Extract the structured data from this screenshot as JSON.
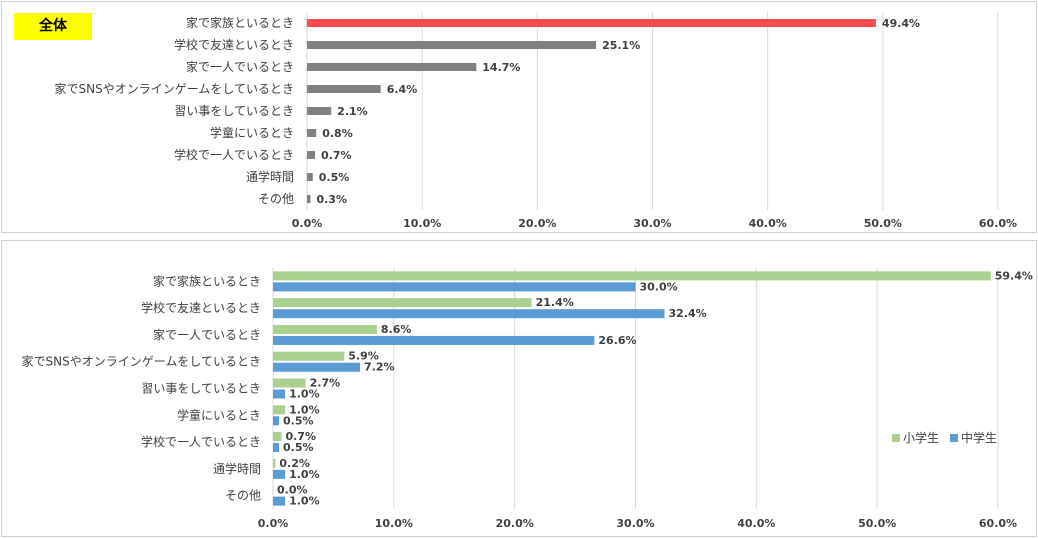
{
  "colors": {
    "highlight_bar": "#f54d4d",
    "gray_bar": "#808080",
    "elementary": "#a9d18e",
    "middle": "#5b9bd5",
    "badge": "#ffff00",
    "grid": "#d9d9d9"
  },
  "chart_data": [
    {
      "type": "bar",
      "orientation": "horizontal",
      "badge": "全体",
      "categories": [
        "家で家族といるとき",
        "学校で友達といるとき",
        "家で一人でいるとき",
        "家でSNSやオンラインゲームをしているとき",
        "習い事をしているとき",
        "学童にいるとき",
        "学校で一人でいるとき",
        "通学時間",
        "その他"
      ],
      "values": [
        49.4,
        25.1,
        14.7,
        6.4,
        2.1,
        0.8,
        0.7,
        0.5,
        0.3
      ],
      "value_labels": [
        "49.4%",
        "25.1%",
        "14.7%",
        "6.4%",
        "2.1%",
        "0.8%",
        "0.7%",
        "0.5%",
        "0.3%"
      ],
      "xlim": [
        0,
        60
      ],
      "ticks": [
        "0.0%",
        "10.0%",
        "20.0%",
        "30.0%",
        "40.0%",
        "50.0%",
        "60.0%"
      ],
      "grid": true
    },
    {
      "type": "bar",
      "orientation": "horizontal",
      "categories": [
        "家で家族といるとき",
        "学校で友達といるとき",
        "家で一人でいるとき",
        "家でSNSやオンラインゲームをしているとき",
        "習い事をしているとき",
        "学童にいるとき",
        "学校で一人でいるとき",
        "通学時間",
        "その他"
      ],
      "series": [
        {
          "name": "小学生",
          "values": [
            59.4,
            21.4,
            8.6,
            5.9,
            2.7,
            1.0,
            0.7,
            0.2,
            0.0
          ],
          "value_labels": [
            "59.4%",
            "21.4%",
            "8.6%",
            "5.9%",
            "2.7%",
            "1.0%",
            "0.7%",
            "0.2%",
            "0.0%"
          ]
        },
        {
          "name": "中学生",
          "values": [
            30.0,
            32.4,
            26.6,
            7.2,
            1.0,
            0.5,
            0.5,
            1.0,
            1.0
          ],
          "value_labels": [
            "30.0%",
            "32.4%",
            "26.6%",
            "7.2%",
            "1.0%",
            "0.5%",
            "0.5%",
            "1.0%",
            "1.0%"
          ]
        }
      ],
      "xlim": [
        0,
        60
      ],
      "ticks": [
        "0.0%",
        "10.0%",
        "20.0%",
        "30.0%",
        "40.0%",
        "50.0%",
        "60.0%"
      ],
      "grid": true,
      "legend_position": "bottom-right"
    }
  ]
}
